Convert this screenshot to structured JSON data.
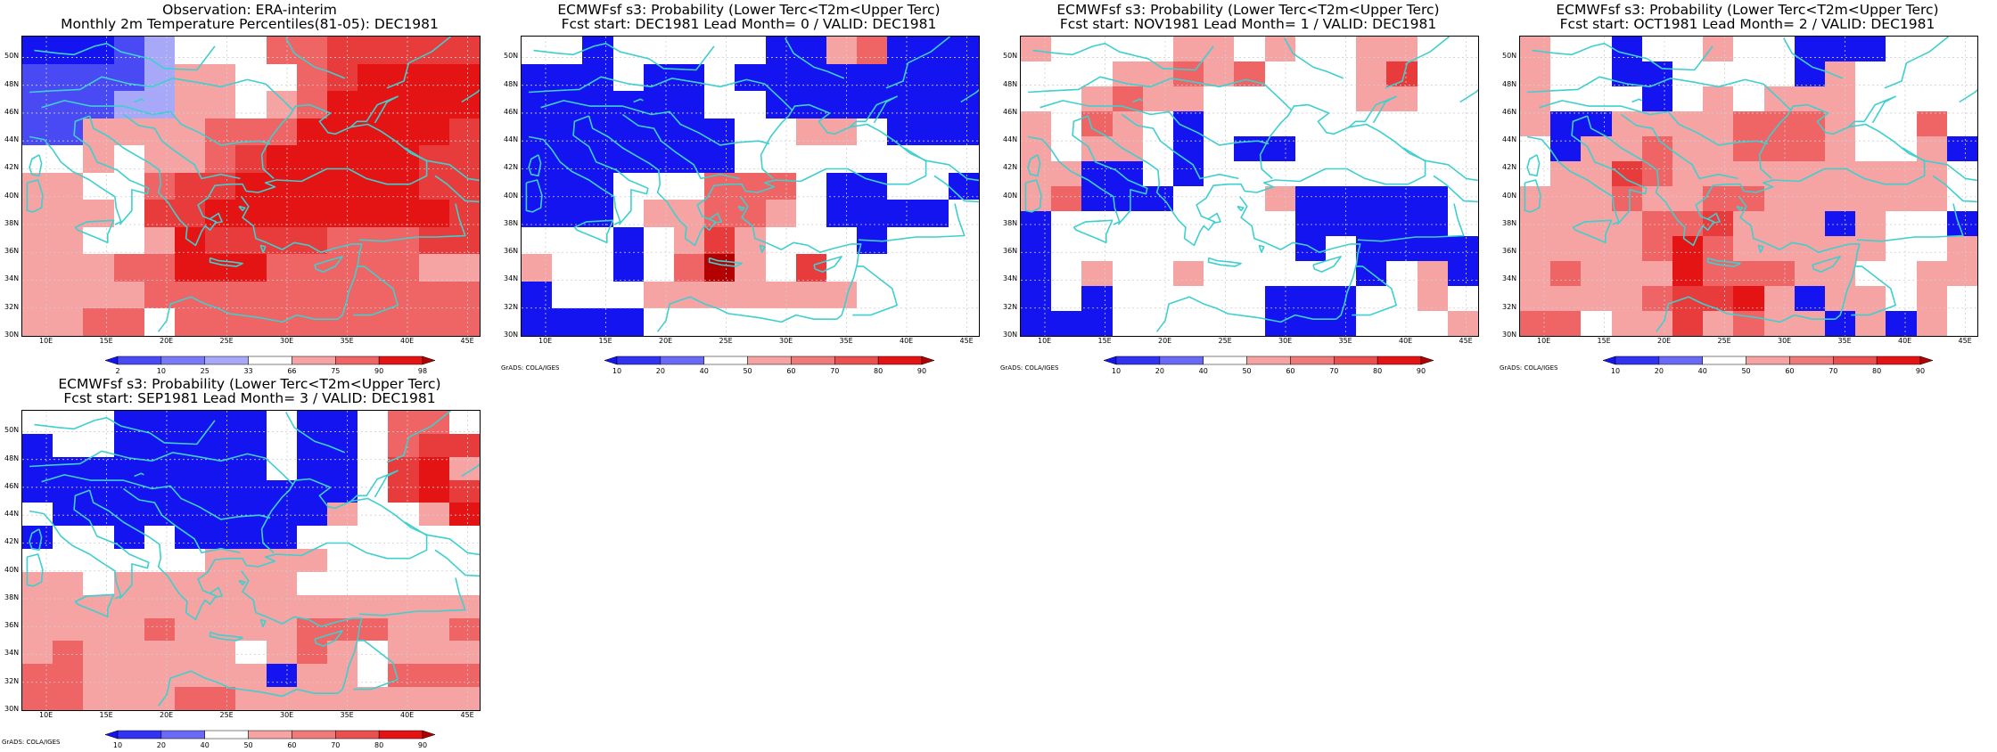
{
  "x_ticks": [
    "10E",
    "15E",
    "20E",
    "25E",
    "30E",
    "35E",
    "40E",
    "45E"
  ],
  "y_ticks": [
    "30N",
    "32N",
    "34N",
    "36N",
    "38N",
    "40N",
    "42N",
    "44N",
    "46N",
    "48N",
    "50N"
  ],
  "credit": "GrADS: COLA/IGES",
  "colors": {
    "sd": "#1414f0",
    "md": "#4a4af5",
    "lt": "#a8a8f8",
    "wh": "#ffffff",
    "pk": "#f5a3a3",
    "rl": "#ef6464",
    "rm": "#e83c3c",
    "rd": "#e41414",
    "rx": "#b30000",
    "coast": "#3fcfcf",
    "grid": "#cfcfcf"
  },
  "obs_legend": {
    "labels": [
      "2",
      "10",
      "25",
      "33",
      "66",
      "75",
      "90",
      "98"
    ],
    "colors": [
      "#1414f0",
      "#4a4af5",
      "#7a7af7",
      "#a8a8f8",
      "#ffffff",
      "#f5a3a3",
      "#ef6464",
      "#e41414",
      "#b30000"
    ]
  },
  "fc_legend": {
    "labels": [
      "10",
      "20",
      "40",
      "50",
      "60",
      "70",
      "80",
      "90"
    ],
    "colors": [
      "#1414f0",
      "#3232f2",
      "#6a6af6",
      "#ffffff",
      "#f5a3a3",
      "#ef7a7a",
      "#ea5050",
      "#e41414",
      "#b30000"
    ]
  },
  "panels": [
    {
      "title1": "Observation: ERA-interim",
      "title2": "Monthly 2m Temperature Percentiles(81-05): DEC1981",
      "legend": "obs",
      "grid": [
        "sd sd sd md lt wh wh wh rl rl rm rm rm rm rm",
        "md md md md lt pk pk wh wh rl rm rd rd rd rd",
        "md md md lt lt pk pk wh pk rl rd rd rd rd rd",
        "md md pk pk pk pk rl rl rl rd rd rd rd rd rm",
        "wh wh pk wh pk pk rl rm rd rd rd rd rd rm rm",
        "pk pk wh wh rl rm rm rd rd rd rd rd rd rm rm",
        "pk pk pk wh rm rm rd rd rd rd rd rd rd rd rm",
        "pk pk wh wh pk rd rm rm rm rm rl rl rl rm rm",
        "pk pk pk rl rl rd rd rd rl rl rl rl rl pk pk",
        "pk pk pk pk rl rl rl rl rl rl rl rl rl rl rl",
        "pk pk rl rl wh rl rl rl rl rl rl rl rl rl rl"
      ]
    },
    {
      "title1": "ECMWFsf s3: Probability (Lower Terc<T2m<Upper Terc)",
      "title2": "Fcst start: DEC1981   Lead Month= 0 / VALID: DEC1981",
      "legend": "fc",
      "grid": [
        "wh wh sd wh wh wh wh wh sd sd pk rl sd sd sd",
        "sd sd sd wh sd sd wh sd sd sd sd sd sd sd sd",
        "sd sd sd sd sd sd wh wh sd sd sd sd sd sd sd",
        "sd sd sd sd sd sd sd wh wh pk pk wh sd sd sd",
        "sd sd sd sd sd sd sd wh wh wh wh wh wh wh wh",
        "sd sd sd wh wh wh rl rl rl wh sd sd wh wh sd",
        "sd sd sd wh pk pk rl rl pk wh sd sd sd sd wh",
        "wh wh wh sd wh pk rm pk wh wh wh sd wh wh wh",
        "pk wh wh sd wh rl rx pk wh rm wh wh wh wh wh",
        "sd wh wh wh pk pk pk pk pk pk pk wh wh wh wh",
        "sd sd sd sd wh wh wh wh wh wh wh wh wh wh wh"
      ]
    },
    {
      "title1": "ECMWFsf s3: Probability (Lower Terc<T2m<Upper Terc)",
      "title2": "Fcst start: NOV1981   Lead Month= 1 / VALID: DEC1981",
      "legend": "fc",
      "grid": [
        "pk wh wh wh wh pk pk wh pk wh wh pk pk wh wh",
        "wh wh wh pk pk rl pk rl wh wh wh pk rm wh wh",
        "wh wh pk rl pk pk wh wh wh wh wh pk pk wh wh",
        "pk wh rl pk wh sd wh wh wh wh wh wh wh wh wh",
        "pk wh pk pk wh sd wh sd sd wh wh wh wh wh wh",
        "pk pk sd sd wh sd wh wh wh wh wh wh wh wh wh",
        "pk rl sd sd sd wh wh wh pk sd sd sd sd sd wh",
        "sd wh wh wh wh wh wh wh wh sd sd sd sd sd wh",
        "sd wh wh wh wh wh wh wh wh sd wh sd sd sd sd",
        "sd wh pk wh wh pk wh wh wh wh wh sd wh pk sd",
        "sd wh sd wh wh wh wh wh sd sd sd wh wh pk wh",
        "sd sd sd wh wh wh wh wh sd sd sd wh wh wh pk"
      ]
    },
    {
      "title1": "ECMWFsf s3: Probability (Lower Terc<T2m<Upper Terc)",
      "title2": "Fcst start: OCT1981   Lead Month= 2 / VALID: DEC1981",
      "legend": "fc",
      "grid": [
        "pk wh wh sd wh wh pk wh wh sd sd sd wh wh wh",
        "pk wh wh sd sd wh wh wh wh sd pk wh wh wh wh",
        "pk wh wh wh sd wh pk wh pk pk pk wh wh wh wh",
        "pk sd sd pk pk pk pk rl rl rl pk wh wh rl wh",
        "wh sd pk pk rl pk pk rl rl rl pk wh wh pk sd",
        "wh pk pk rm rl pk pk pk pk pk pk pk pk pk wh",
        "pk pk pk rl pk pk rl rl pk pk pk pk pk pk wh",
        "pk pk pk pk rl rl rm pk pk pk sd pk wh wh sd",
        "pk pk pk pk rl rd rl pk pk pk pk pk wh wh pk",
        "pk rl pk pk pk rd rl rl rl pk pk wh wh pk pk",
        "pk pk pk pk rl rm rm rd pk sd pk pk wh pk wh",
        "rl rl wh pk pk rm pk rl pk pk sd pk sd pk wh"
      ]
    },
    {
      "title1": "ECMWFsf s3: Probability (Lower Terc<T2m<Upper Terc)",
      "title2": "Fcst start: SEP1981   Lead Month= 3 / VALID: DEC1981",
      "legend": "fc",
      "grid": [
        "wh wh wh sd sd sd sd sd wh sd sd wh rl rl wh",
        "sd wh wh sd sd sd sd sd wh sd sd wh rl rm rm",
        "sd sd sd sd sd sd sd sd wh sd sd wh rm rd pk",
        "sd sd sd sd sd sd sd sd sd sd sd wh rm rd rm",
        "wh sd sd sd sd sd sd sd sd sd pk wh wh pk rd",
        "sd wh wh sd wh sd sd sd sd wh wh wh wh wh wh",
        "wh wh wh wh wh wh pk pk pk pk wh wh wh wh wh",
        "pk pk wh pk pk pk pk pk pk wh wh wh wh wh wh",
        "pk pk pk pk pk pk pk pk pk pk pk pk pk pk pk",
        "pk pk pk pk rl pk pk pk pk rl rl rl pk pk rl",
        "pk rl pk pk pk pk pk wh pk rl pk wh pk pk pk",
        "rl rl pk pk pk pk pk pk sd pk pk wh rl rl rl",
        "rl rl pk pk pk rl rl pk pk pk pk pk pk pk pk"
      ]
    }
  ]
}
